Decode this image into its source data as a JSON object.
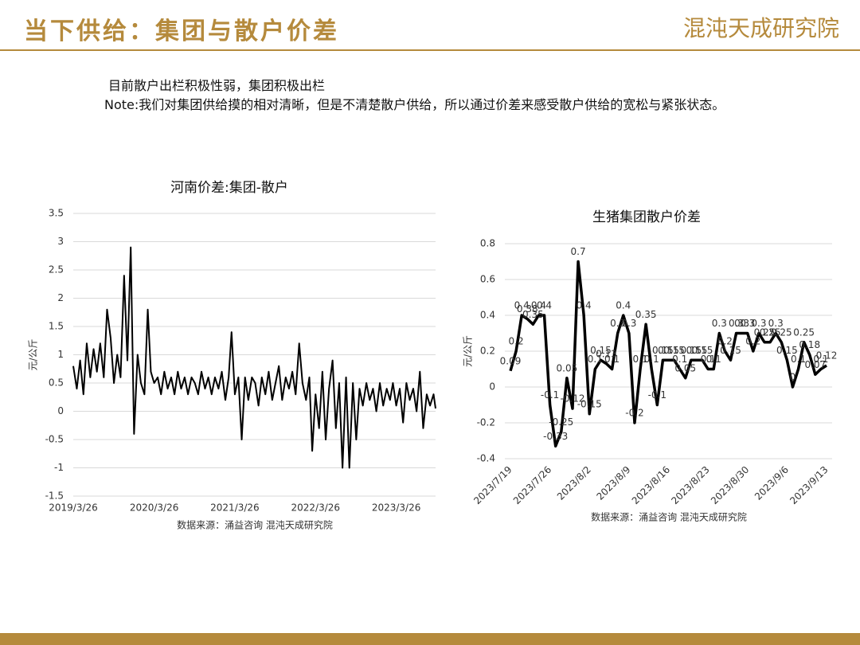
{
  "header": {
    "title": "当下供给：集团与散户价差",
    "logo": "混沌天成研究院"
  },
  "text": {
    "line1": "目前散户出栏积极性弱，集团积极出栏",
    "note": "Note:我们对集团供给摸的相对清晰，但是不清楚散户供给，所以通过价差来感受散户供给的宽松与紧张状态。"
  },
  "chart_data": [
    {
      "type": "line",
      "title": "河南价差:集团-散户",
      "ylabel": "元/公斤",
      "source": "数据来源：涌益咨询 混沌天成研究院",
      "x": [
        "2019/3/26",
        "2019/4/11",
        "2019/4/26",
        "2019/5/11",
        "2019/5/26",
        "2019/6/11",
        "2019/6/26",
        "2019/7/11",
        "2019/7/26",
        "2019/8/11",
        "2019/8/26",
        "2019/9/11",
        "2019/9/26",
        "2019/10/11",
        "2019/10/26",
        "2019/11/11",
        "2019/11/26",
        "2019/12/11",
        "2019/12/26",
        "2020/1/11",
        "2020/1/26",
        "2020/2/11",
        "2020/2/26",
        "2020/3/11",
        "2020/3/26",
        "2020/4/11",
        "2020/4/26",
        "2020/5/11",
        "2020/5/26",
        "2020/6/11",
        "2020/6/26",
        "2020/7/11",
        "2020/7/26",
        "2020/8/11",
        "2020/8/26",
        "2020/9/11",
        "2020/9/26",
        "2020/10/11",
        "2020/10/26",
        "2020/11/11",
        "2020/11/26",
        "2020/12/11",
        "2020/12/26",
        "2021/1/11",
        "2021/1/26",
        "2021/2/11",
        "2021/2/26",
        "2021/3/11",
        "2021/3/26",
        "2021/4/11",
        "2021/4/26",
        "2021/5/11",
        "2021/5/26",
        "2021/6/11",
        "2021/6/26",
        "2021/7/11",
        "2021/7/26",
        "2021/8/11",
        "2021/8/26",
        "2021/9/11",
        "2021/9/26",
        "2021/10/11",
        "2021/10/26",
        "2021/11/11",
        "2021/11/26",
        "2021/12/11",
        "2021/12/26",
        "2022/1/11",
        "2022/1/26",
        "2022/2/11",
        "2022/2/26",
        "2022/3/11",
        "2022/3/26",
        "2022/4/11",
        "2022/4/26",
        "2022/5/11",
        "2022/5/26",
        "2022/6/11",
        "2022/6/26",
        "2022/7/11",
        "2022/7/26",
        "2022/8/11",
        "2022/8/26",
        "2022/9/11",
        "2022/9/26",
        "2022/10/11",
        "2022/10/26",
        "2022/11/11",
        "2022/11/26",
        "2022/12/11",
        "2022/12/26",
        "2023/1/11",
        "2023/1/26",
        "2023/2/11",
        "2023/2/26",
        "2023/3/11",
        "2023/3/26",
        "2023/4/11",
        "2023/4/26",
        "2023/5/11",
        "2023/5/26",
        "2023/6/11",
        "2023/6/26",
        "2023/7/11",
        "2023/7/26",
        "2023/8/11",
        "2023/8/26",
        "2023/9/11",
        "2023/9/20"
      ],
      "series": [
        {
          "color": "#000000",
          "values": [
            0.8,
            0.4,
            0.9,
            0.3,
            1.2,
            0.6,
            1.1,
            0.7,
            1.2,
            0.6,
            1.8,
            1.3,
            0.5,
            1.0,
            0.6,
            2.4,
            0.9,
            2.9,
            -0.4,
            1.0,
            0.5,
            0.3,
            1.8,
            0.7,
            0.5,
            0.6,
            0.3,
            0.7,
            0.4,
            0.6,
            0.3,
            0.7,
            0.4,
            0.6,
            0.3,
            0.6,
            0.5,
            0.3,
            0.7,
            0.4,
            0.6,
            0.3,
            0.6,
            0.4,
            0.7,
            0.2,
            0.6,
            1.4,
            0.3,
            0.6,
            -0.5,
            0.6,
            0.2,
            0.6,
            0.5,
            0.1,
            0.6,
            0.3,
            0.7,
            0.2,
            0.5,
            0.8,
            0.2,
            0.6,
            0.4,
            0.7,
            0.3,
            1.2,
            0.5,
            0.2,
            0.6,
            -0.7,
            0.3,
            -0.3,
            0.7,
            -0.5,
            0.4,
            0.9,
            -0.3,
            0.5,
            -1.0,
            0.6,
            -1.0,
            0.5,
            -0.5,
            0.4,
            0.1,
            0.5,
            0.2,
            0.4,
            0.0,
            0.5,
            0.1,
            0.4,
            0.2,
            0.5,
            0.1,
            0.4,
            -0.2,
            0.5,
            0.2,
            0.4,
            0.0,
            0.7,
            -0.3,
            0.3,
            0.1,
            0.3,
            0.05
          ]
        }
      ],
      "xlim": [
        "2019/3/26",
        "2023/9/20"
      ],
      "xticks": [
        "2019/3/26",
        "2020/3/26",
        "2021/3/26",
        "2022/3/26",
        "2023/3/26"
      ],
      "ylim": [
        -1.5,
        3.5
      ],
      "yticks": [
        -1.5,
        -1,
        -0.5,
        0,
        0.5,
        1,
        1.5,
        2,
        2.5,
        3,
        3.5
      ],
      "grid": true
    },
    {
      "type": "line",
      "title": "生猪集团散户价差",
      "ylabel": "元/公斤",
      "source": "数据来源：涌益咨询  混沌天成研究院",
      "categories": [
        "2023/7/19",
        null,
        null,
        null,
        null,
        null,
        null,
        "2023/7/26",
        null,
        null,
        null,
        null,
        null,
        null,
        "2023/8/2",
        null,
        null,
        null,
        null,
        null,
        null,
        "2023/8/9",
        null,
        null,
        null,
        null,
        null,
        null,
        "2023/8/16",
        null,
        null,
        null,
        null,
        null,
        null,
        "2023/8/23",
        null,
        null,
        null,
        null,
        null,
        null,
        "2023/8/30",
        null,
        null,
        null,
        null,
        null,
        null,
        "2023/9/6",
        null,
        null,
        null,
        null,
        null,
        null,
        "2023/9/13"
      ],
      "series": [
        {
          "color": "#000000",
          "values": [
            0.09,
            0.2,
            0.4,
            0.38,
            0.35,
            0.4,
            0.4,
            -0.1,
            -0.33,
            -0.25,
            0.05,
            -0.12,
            0.7,
            0.4,
            -0.15,
            0.1,
            0.15,
            0.13,
            0.1,
            0.3,
            0.4,
            0.3,
            -0.2,
            0.1,
            0.35,
            0.1,
            -0.1,
            0.15,
            0.15,
            0.15,
            0.1,
            0.05,
            0.15,
            0.15,
            0.15,
            0.1,
            0.1,
            0.3,
            0.2,
            0.15,
            0.3,
            0.3,
            0.3,
            0.2,
            0.3,
            0.25,
            0.25,
            0.3,
            0.25,
            0.15,
            0,
            0.1,
            0.25,
            0.18,
            0.07,
            0.1,
            0.12
          ]
        }
      ],
      "ylim": [
        -0.4,
        0.8
      ],
      "yticks": [
        -0.4,
        -0.2,
        0,
        0.2,
        0.4,
        0.6,
        0.8
      ],
      "grid": true,
      "data_labels": true
    }
  ]
}
